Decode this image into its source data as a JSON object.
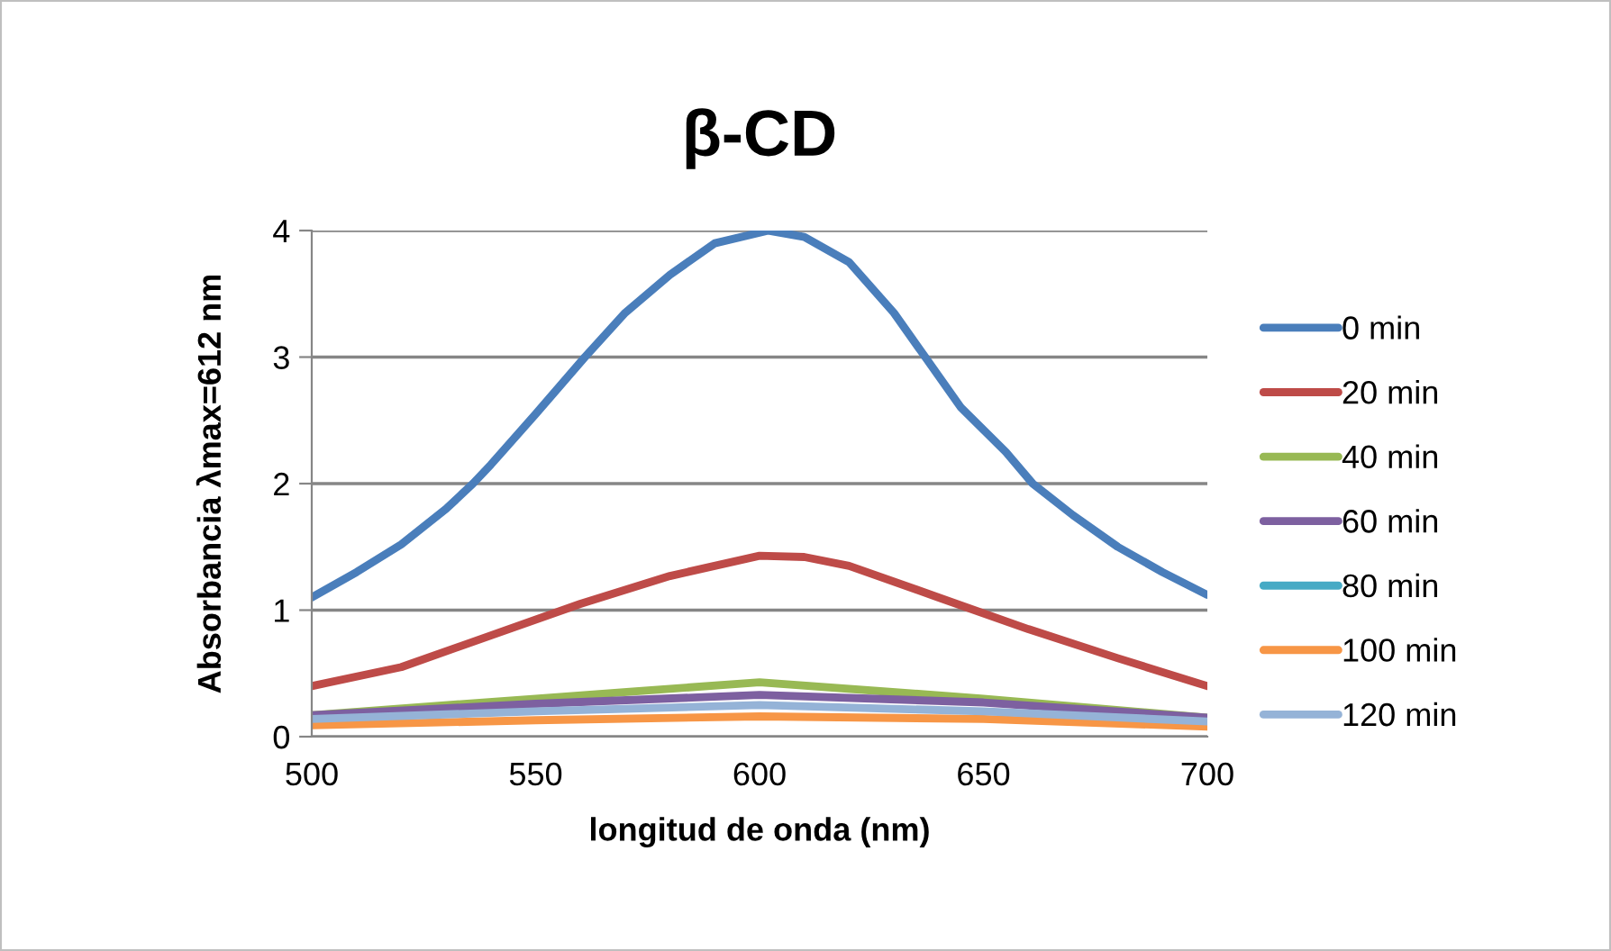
{
  "chart_data": {
    "type": "line",
    "title": "β-CD",
    "xlabel": "longitud de onda (nm)",
    "ylabel": "Absorbancia λmax=612 nm",
    "xlim": [
      500,
      700
    ],
    "xticks": [
      500,
      550,
      600,
      650,
      700
    ],
    "ylim": [
      0,
      4
    ],
    "yticks": [
      0,
      1,
      2,
      3,
      4
    ],
    "grid": "y",
    "legend": "right",
    "marker": "none",
    "line_style": "solid",
    "series": [
      {
        "name": "0 min",
        "color": "#4a7ebb",
        "x": [
          500,
          510,
          520,
          530,
          536,
          540,
          550,
          561,
          570,
          580,
          590,
          602,
          610,
          620,
          630,
          637,
          645,
          655,
          661,
          670,
          680,
          690,
          700
        ],
        "values": [
          1.1,
          1.3,
          1.52,
          1.8,
          2.0,
          2.15,
          2.55,
          3.0,
          3.35,
          3.65,
          3.9,
          4.0,
          3.95,
          3.75,
          3.35,
          3.0,
          2.6,
          2.25,
          2.0,
          1.75,
          1.5,
          1.3,
          1.12
        ]
      },
      {
        "name": "20 min",
        "color": "#be4b48",
        "x": [
          500,
          520,
          540,
          560,
          580,
          600,
          610,
          620,
          640,
          660,
          680,
          700
        ],
        "values": [
          0.4,
          0.55,
          0.8,
          1.05,
          1.27,
          1.43,
          1.42,
          1.35,
          1.1,
          0.85,
          0.62,
          0.4
        ]
      },
      {
        "name": "40 min",
        "color": "#98b954",
        "x": [
          500,
          550,
          600,
          650,
          700
        ],
        "values": [
          0.17,
          0.3,
          0.43,
          0.3,
          0.15
        ]
      },
      {
        "name": "60 min",
        "color": "#7d60a0",
        "x": [
          500,
          550,
          600,
          650,
          700
        ],
        "values": [
          0.17,
          0.26,
          0.33,
          0.27,
          0.15
        ]
      },
      {
        "name": "80 min",
        "color": "#46aac5"
      },
      {
        "name": "100 min",
        "color": "#f79646",
        "x": [
          500,
          550,
          600,
          650,
          700
        ],
        "values": [
          0.09,
          0.13,
          0.16,
          0.14,
          0.08
        ]
      },
      {
        "name": "120 min",
        "color": "#95b3d7",
        "x": [
          500,
          550,
          600,
          650,
          700
        ],
        "values": [
          0.14,
          0.2,
          0.25,
          0.2,
          0.12
        ]
      }
    ]
  }
}
